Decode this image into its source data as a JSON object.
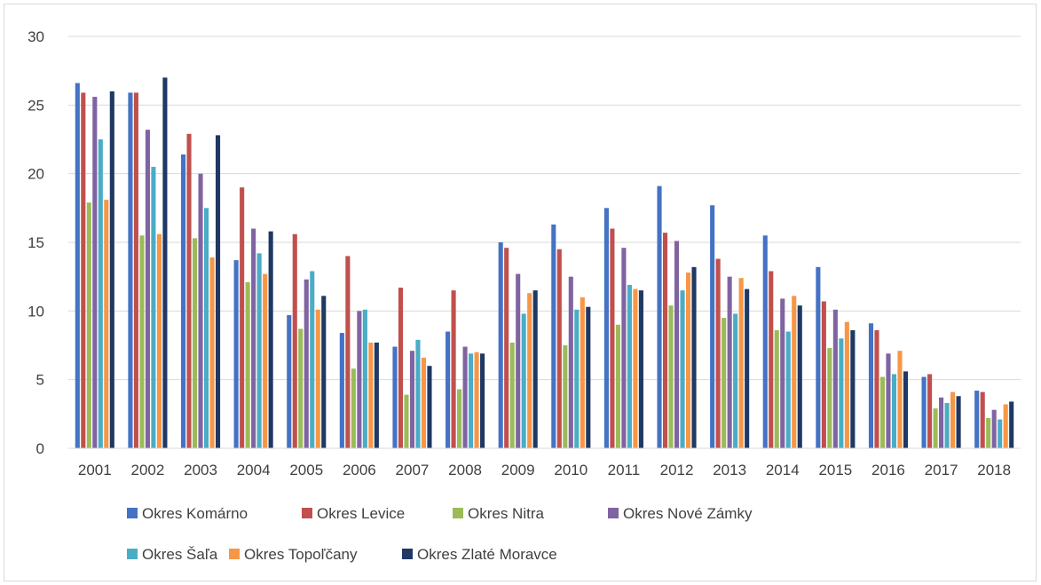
{
  "chart_data": {
    "type": "bar",
    "title": "",
    "xlabel": "",
    "ylabel": "",
    "ylim": [
      0,
      30
    ],
    "y_ticks": [
      "0",
      "5",
      "10",
      "15",
      "20",
      "25",
      "30"
    ],
    "grid": true,
    "legend_position": "bottom",
    "categories": [
      "2001",
      "2002",
      "2003",
      "2004",
      "2005",
      "2006",
      "2007",
      "2008",
      "2009",
      "2010",
      "2011",
      "2012",
      "2013",
      "2014",
      "2015",
      "2016",
      "2017",
      "2018"
    ],
    "series": [
      {
        "name": "Okres Komárno",
        "color": "#4472C4",
        "values": [
          26.6,
          25.9,
          21.4,
          13.7,
          9.7,
          8.4,
          7.4,
          8.5,
          15.0,
          16.3,
          17.5,
          19.1,
          17.7,
          15.5,
          13.2,
          9.1,
          5.2,
          4.2
        ]
      },
      {
        "name": "Okres Levice",
        "color": "#C0504D",
        "values": [
          25.9,
          25.9,
          22.9,
          19.0,
          15.6,
          14.0,
          11.7,
          11.5,
          14.6,
          14.5,
          16.0,
          15.7,
          13.8,
          12.9,
          10.7,
          8.6,
          5.4,
          4.1
        ]
      },
      {
        "name": "Okres Nitra",
        "color": "#9BBB59",
        "values": [
          17.9,
          15.5,
          15.3,
          12.1,
          8.7,
          5.8,
          3.9,
          4.3,
          7.7,
          7.5,
          9.0,
          10.4,
          9.5,
          8.6,
          7.3,
          5.2,
          2.9,
          2.2
        ]
      },
      {
        "name": "Okres Nové Zámky",
        "color": "#8064A2",
        "values": [
          25.6,
          23.2,
          20.0,
          16.0,
          12.3,
          10.0,
          7.1,
          7.4,
          12.7,
          12.5,
          14.6,
          15.1,
          12.5,
          10.9,
          10.1,
          6.9,
          3.7,
          2.8
        ]
      },
      {
        "name": "Okres Šaľa",
        "color": "#4BACC6",
        "values": [
          22.5,
          20.5,
          17.5,
          14.2,
          12.9,
          10.1,
          7.9,
          6.9,
          9.8,
          10.1,
          11.9,
          11.5,
          9.8,
          8.5,
          8.0,
          5.4,
          3.3,
          2.1
        ]
      },
      {
        "name": "Okres Topoľčany",
        "color": "#F79646",
        "values": [
          18.1,
          15.6,
          13.9,
          12.7,
          10.1,
          7.7,
          6.6,
          7.0,
          11.3,
          11.0,
          11.6,
          12.8,
          12.4,
          11.1,
          9.2,
          7.1,
          4.1,
          3.2
        ]
      },
      {
        "name": "Okres Zlaté Moravce",
        "color": "#1F3864",
        "values": [
          26.0,
          27.0,
          22.8,
          15.8,
          11.1,
          7.7,
          6.0,
          6.9,
          11.5,
          10.3,
          11.5,
          13.2,
          11.6,
          10.4,
          8.6,
          5.6,
          3.8,
          3.4
        ]
      }
    ]
  }
}
